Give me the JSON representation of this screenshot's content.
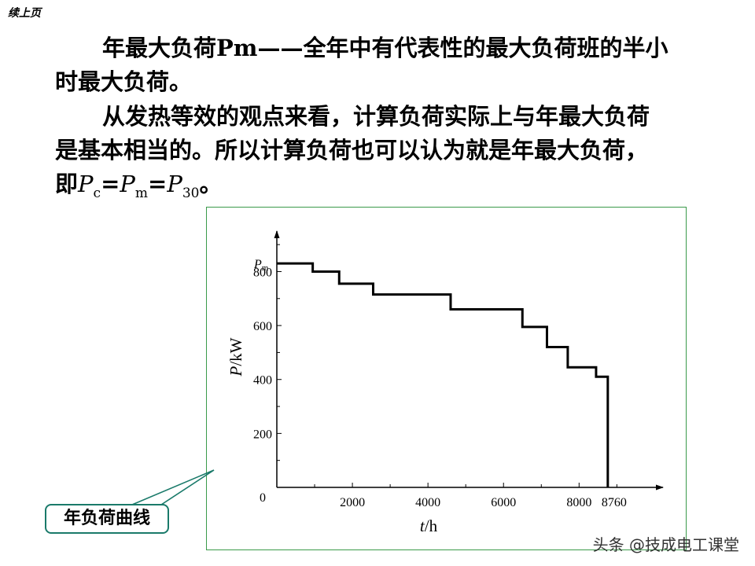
{
  "header": {
    "continued": "续上页"
  },
  "paragraphs": {
    "p1_line1": "年最大负荷Pm——全年中有代表性的最大负荷班的半小",
    "p1_line2": "时最大负荷。",
    "p2_line1": "从发热等效的观点来看，计算负荷实际上与年最大负荷",
    "p2_line2": "是基本相当的。所以计算负荷也可以认为就是年最大负荷，",
    "formula": {
      "prefix": "即",
      "p": "P",
      "sub_c": "c",
      "eq1": "=",
      "sub_m": "m",
      "eq2": "=",
      "sub_30": "30",
      "end": "。"
    }
  },
  "chart_data": {
    "type": "step",
    "xlabel": "t/h",
    "ylabel": "P/kW",
    "pm_label_main": "P",
    "pm_label_sub": "m",
    "origin_label": "0",
    "xlim": [
      0,
      10200
    ],
    "ylim": [
      0,
      950
    ],
    "x_ticks": [
      2000,
      4000,
      6000,
      8000
    ],
    "x_tick_labels": [
      "2000",
      "4000",
      "6000",
      "8000"
    ],
    "x_end_label": "8760",
    "y_ticks": [
      200,
      400,
      600,
      800
    ],
    "y_tick_labels": [
      "200",
      "400",
      "600",
      "800"
    ],
    "steps": [
      {
        "x0": 0,
        "x1": 950,
        "y": 830
      },
      {
        "x0": 950,
        "x1": 1650,
        "y": 800
      },
      {
        "x0": 1650,
        "x1": 2550,
        "y": 755
      },
      {
        "x0": 2550,
        "x1": 4600,
        "y": 715
      },
      {
        "x0": 4600,
        "x1": 6500,
        "y": 660
      },
      {
        "x0": 6500,
        "x1": 7150,
        "y": 595
      },
      {
        "x0": 7150,
        "x1": 7700,
        "y": 520
      },
      {
        "x0": 7700,
        "x1": 8450,
        "y": 445
      },
      {
        "x0": 8450,
        "x1": 8760,
        "y": 410
      }
    ]
  },
  "callout": {
    "label": "年负荷曲线"
  },
  "watermark": {
    "text": "头条 @技成电工课堂"
  }
}
